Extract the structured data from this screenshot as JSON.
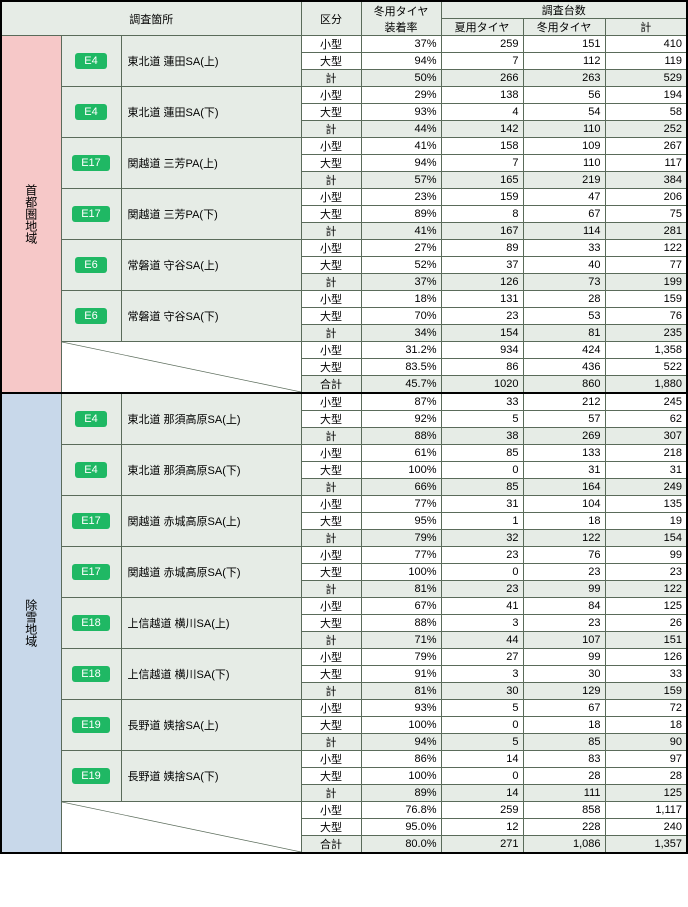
{
  "headers": {
    "location": "調査箇所",
    "category": "区分",
    "rate": "冬用タイヤ\n装着率",
    "survey": "調査台数",
    "summer": "夏用タイヤ",
    "winter": "冬用タイヤ",
    "total": "計"
  },
  "regions": [
    {
      "name": "首都圏地域",
      "bg": "pink",
      "locations": [
        {
          "badge": "E4",
          "name": "東北道 蓮田SA(上)",
          "rows": [
            {
              "k": "小型",
              "r": "37%",
              "s": "259",
              "w": "151",
              "t": "410"
            },
            {
              "k": "大型",
              "r": "94%",
              "s": "7",
              "w": "112",
              "t": "119"
            },
            {
              "k": "計",
              "r": "50%",
              "s": "266",
              "w": "263",
              "t": "529",
              "sub": true
            }
          ]
        },
        {
          "badge": "E4",
          "name": "東北道 蓮田SA(下)",
          "rows": [
            {
              "k": "小型",
              "r": "29%",
              "s": "138",
              "w": "56",
              "t": "194"
            },
            {
              "k": "大型",
              "r": "93%",
              "s": "4",
              "w": "54",
              "t": "58"
            },
            {
              "k": "計",
              "r": "44%",
              "s": "142",
              "w": "110",
              "t": "252",
              "sub": true
            }
          ]
        },
        {
          "badge": "E17",
          "name": "関越道 三芳PA(上)",
          "rows": [
            {
              "k": "小型",
              "r": "41%",
              "s": "158",
              "w": "109",
              "t": "267"
            },
            {
              "k": "大型",
              "r": "94%",
              "s": "7",
              "w": "110",
              "t": "117"
            },
            {
              "k": "計",
              "r": "57%",
              "s": "165",
              "w": "219",
              "t": "384",
              "sub": true
            }
          ]
        },
        {
          "badge": "E17",
          "name": "関越道 三芳PA(下)",
          "rows": [
            {
              "k": "小型",
              "r": "23%",
              "s": "159",
              "w": "47",
              "t": "206"
            },
            {
              "k": "大型",
              "r": "89%",
              "s": "8",
              "w": "67",
              "t": "75"
            },
            {
              "k": "計",
              "r": "41%",
              "s": "167",
              "w": "114",
              "t": "281",
              "sub": true
            }
          ]
        },
        {
          "badge": "E6",
          "name": "常磐道 守谷SA(上)",
          "rows": [
            {
              "k": "小型",
              "r": "27%",
              "s": "89",
              "w": "33",
              "t": "122"
            },
            {
              "k": "大型",
              "r": "52%",
              "s": "37",
              "w": "40",
              "t": "77"
            },
            {
              "k": "計",
              "r": "37%",
              "s": "126",
              "w": "73",
              "t": "199",
              "sub": true
            }
          ]
        },
        {
          "badge": "E6",
          "name": "常磐道 守谷SA(下)",
          "rows": [
            {
              "k": "小型",
              "r": "18%",
              "s": "131",
              "w": "28",
              "t": "159"
            },
            {
              "k": "大型",
              "r": "70%",
              "s": "23",
              "w": "53",
              "t": "76"
            },
            {
              "k": "計",
              "r": "34%",
              "s": "154",
              "w": "81",
              "t": "235",
              "sub": true
            }
          ]
        }
      ],
      "summary": [
        {
          "k": "小型",
          "r": "31.2%",
          "s": "934",
          "w": "424",
          "t": "1,358"
        },
        {
          "k": "大型",
          "r": "83.5%",
          "s": "86",
          "w": "436",
          "t": "522"
        },
        {
          "k": "合計",
          "r": "45.7%",
          "s": "1020",
          "w": "860",
          "t": "1,880",
          "sub": true
        }
      ]
    },
    {
      "name": "除雪地域",
      "bg": "blue",
      "locations": [
        {
          "badge": "E4",
          "name": "東北道 那須高原SA(上)",
          "rows": [
            {
              "k": "小型",
              "r": "87%",
              "s": "33",
              "w": "212",
              "t": "245"
            },
            {
              "k": "大型",
              "r": "92%",
              "s": "5",
              "w": "57",
              "t": "62"
            },
            {
              "k": "計",
              "r": "88%",
              "s": "38",
              "w": "269",
              "t": "307",
              "sub": true
            }
          ]
        },
        {
          "badge": "E4",
          "name": "東北道 那須高原SA(下)",
          "rows": [
            {
              "k": "小型",
              "r": "61%",
              "s": "85",
              "w": "133",
              "t": "218"
            },
            {
              "k": "大型",
              "r": "100%",
              "s": "0",
              "w": "31",
              "t": "31"
            },
            {
              "k": "計",
              "r": "66%",
              "s": "85",
              "w": "164",
              "t": "249",
              "sub": true
            }
          ]
        },
        {
          "badge": "E17",
          "name": "関越道 赤城高原SA(上)",
          "rows": [
            {
              "k": "小型",
              "r": "77%",
              "s": "31",
              "w": "104",
              "t": "135"
            },
            {
              "k": "大型",
              "r": "95%",
              "s": "1",
              "w": "18",
              "t": "19"
            },
            {
              "k": "計",
              "r": "79%",
              "s": "32",
              "w": "122",
              "t": "154",
              "sub": true
            }
          ]
        },
        {
          "badge": "E17",
          "name": "関越道 赤城高原SA(下)",
          "rows": [
            {
              "k": "小型",
              "r": "77%",
              "s": "23",
              "w": "76",
              "t": "99"
            },
            {
              "k": "大型",
              "r": "100%",
              "s": "0",
              "w": "23",
              "t": "23"
            },
            {
              "k": "計",
              "r": "81%",
              "s": "23",
              "w": "99",
              "t": "122",
              "sub": true
            }
          ]
        },
        {
          "badge": "E18",
          "name": "上信越道 横川SA(上)",
          "rows": [
            {
              "k": "小型",
              "r": "67%",
              "s": "41",
              "w": "84",
              "t": "125"
            },
            {
              "k": "大型",
              "r": "88%",
              "s": "3",
              "w": "23",
              "t": "26"
            },
            {
              "k": "計",
              "r": "71%",
              "s": "44",
              "w": "107",
              "t": "151",
              "sub": true
            }
          ]
        },
        {
          "badge": "E18",
          "name": "上信越道 横川SA(下)",
          "rows": [
            {
              "k": "小型",
              "r": "79%",
              "s": "27",
              "w": "99",
              "t": "126"
            },
            {
              "k": "大型",
              "r": "91%",
              "s": "3",
              "w": "30",
              "t": "33"
            },
            {
              "k": "計",
              "r": "81%",
              "s": "30",
              "w": "129",
              "t": "159",
              "sub": true
            }
          ]
        },
        {
          "badge": "E19",
          "name": "長野道 姨捨SA(上)",
          "rows": [
            {
              "k": "小型",
              "r": "93%",
              "s": "5",
              "w": "67",
              "t": "72"
            },
            {
              "k": "大型",
              "r": "100%",
              "s": "0",
              "w": "18",
              "t": "18"
            },
            {
              "k": "計",
              "r": "94%",
              "s": "5",
              "w": "85",
              "t": "90",
              "sub": true
            }
          ]
        },
        {
          "badge": "E19",
          "name": "長野道 姨捨SA(下)",
          "rows": [
            {
              "k": "小型",
              "r": "86%",
              "s": "14",
              "w": "83",
              "t": "97"
            },
            {
              "k": "大型",
              "r": "100%",
              "s": "0",
              "w": "28",
              "t": "28"
            },
            {
              "k": "計",
              "r": "89%",
              "s": "14",
              "w": "111",
              "t": "125",
              "sub": true
            }
          ]
        }
      ],
      "summary": [
        {
          "k": "小型",
          "r": "76.8%",
          "s": "259",
          "w": "858",
          "t": "1,117"
        },
        {
          "k": "大型",
          "r": "95.0%",
          "s": "12",
          "w": "228",
          "t": "240"
        },
        {
          "k": "合計",
          "r": "80.0%",
          "s": "271",
          "w": "1,086",
          "t": "1,357",
          "sub": true
        }
      ]
    }
  ],
  "colors": {
    "header_bg": "#e6ece6",
    "pink_bg": "#f6c8c8",
    "blue_bg": "#c8d8ea",
    "badge_bg": "#1fb864",
    "border": "#5a6b5a"
  }
}
